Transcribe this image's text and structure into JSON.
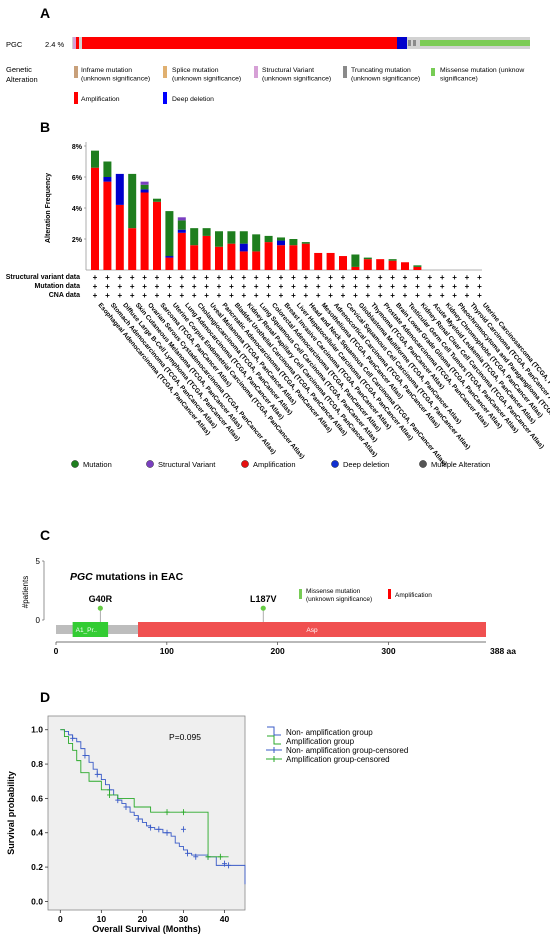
{
  "panels": {
    "a": "A",
    "b": "B",
    "c": "C",
    "d": "D"
  },
  "oncoprint": {
    "gene": "PGC",
    "percent": "2.4 %",
    "legend_title": [
      "Genetic",
      "Alteration"
    ],
    "legend": [
      {
        "label": [
          "Inframe mutation",
          "(unknown significance)"
        ],
        "color": "#c8a07a"
      },
      {
        "label": [
          "Splice mutation",
          "(unknown significance)"
        ],
        "color": "#e0b070"
      },
      {
        "label": [
          "Structural Variant",
          "(unknown significance)"
        ],
        "color": "#d6a0d6"
      },
      {
        "label": [
          "Truncating mutation",
          "(unknown significance)"
        ],
        "color": "#8a8a8a"
      },
      {
        "label": [
          "Missense mutation (unknow",
          "significance)"
        ],
        "color": "#77cc55"
      },
      {
        "label": [
          "Amplification"
        ],
        "color": "#ff0000"
      },
      {
        "label": [
          "Deep deletion"
        ],
        "color": "#0000ff"
      }
    ],
    "colors": {
      "amp": "#ff0000",
      "del": "#0000cc",
      "mis": "#7ccc55",
      "track": "#d2d2d2"
    }
  },
  "chart_data": [
    {
      "type": "bar",
      "stacked": true,
      "ylabel": "Alteration Frequency",
      "ylim": [
        0,
        8
      ],
      "yticks": [
        "8%",
        "6%",
        "4%",
        "2%"
      ],
      "categories": [
        "Esophageal Adenocarcinoma (TCGA, PanCancer Atlas)",
        "Stomach Adenocarcinoma (TCGA, PanCancer Atlas)",
        "Diffuse Large B-Cell Lymphoma (TCGA, PanCancer Atlas)",
        "Skin Cutaneous Melanoma (TCGA, PanCancer Atlas)",
        "Ovarian Serous Cystadenocarcinoma (TCGA, PanCancer Atlas)",
        "Sarcoma (TCGA, PanCancer Atlas)",
        "Uterine Corpus Endometrial Carcinoma (TCGA, PanCancer Atlas)",
        "Lung Adenocarcinoma (TCGA, PanCancer Atlas)",
        "Cholangiocarcinoma (TCGA, PanCancer Atlas)",
        "Uveal Melanoma (TCGA, PanCancer Atlas)",
        "Pancreatic Adenocarcinoma (TCGA, PanCancer Atlas)",
        "Bladder Urothelial Carcinoma (TCGA, PanCancer Atlas)",
        "Kidney Renal Papillary Cell Carcinoma (TCGA, PanCancer Atlas)",
        "Lung Squamous Cell Carcinoma (TCGA, PanCancer Atlas)",
        "Colorectal Adenocarcinoma (TCGA, PanCancer Atlas)",
        "Breast Invasive Carcinoma (TCGA, PanCancer Atlas)",
        "Liver Hepatocellular Carcinoma (TCGA, PanCancer Atlas)",
        "Head and Neck Squamous Cell Carcinoma (TCGA, PanCancer Atlas)",
        "Mesothelioma (TCGA, PanCancer Atlas)",
        "Adrenocortical Carcinoma (TCGA, PanCancer Atlas)",
        "Cervical Squamous Cell Carcinoma (TCGA, PanCancer Atlas)",
        "Glioblastoma Multiforme (TCGA, PanCancer Atlas)",
        "Thymoma (TCGA, PanCancer Atlas)",
        "Prostate Adenocarcinoma (TCGA, PanCancer Atlas)",
        "Brain Lower Grade Glioma (TCGA, PanCancer Atlas)",
        "Testicular Germ Cell Tumors (TCGA, PanCancer Atlas)",
        "Kidney Renal Clear Cell Carcinoma (TCGA, PanCancer Atlas)",
        "Acute Myeloid Leukemia (TCGA, PanCancer Atlas)",
        "Kidney Chromophobe (TCGA, PanCancer Atlas)",
        "Pheochromocytoma and Paraganglioma (TCGA, PanCancer Atlas)",
        "Thyroid Carcinoma (TCGA, PanCancer Atlas)",
        "Uterine Carcinosarcoma (TCGA, PanCancer Atlas)"
      ],
      "series": [
        {
          "name": "Amplification",
          "color": "#ff0000",
          "values": [
            6.6,
            5.7,
            4.2,
            2.7,
            5.0,
            4.4,
            0.8,
            2.4,
            1.6,
            2.2,
            1.5,
            1.7,
            1.2,
            1.2,
            1.8,
            1.6,
            1.6,
            1.7,
            1.1,
            1.1,
            0.9,
            0.2,
            0.7,
            0.7,
            0.6,
            0.5,
            0.2,
            0,
            0,
            0,
            0,
            0
          ]
        },
        {
          "name": "Deep deletion",
          "color": "#0000cc",
          "values": [
            0,
            0.3,
            2.0,
            0,
            0.2,
            0,
            0.1,
            0.2,
            0,
            0,
            0,
            0,
            0.5,
            0,
            0,
            0.3,
            0,
            0,
            0,
            0,
            0,
            0,
            0,
            0,
            0,
            0,
            0,
            0,
            0,
            0,
            0,
            0
          ]
        },
        {
          "name": "Mutation",
          "color": "#1e7e1e",
          "values": [
            1.1,
            1.0,
            0,
            3.5,
            0.3,
            0.2,
            2.9,
            0.6,
            1.1,
            0.5,
            1.0,
            0.8,
            0.8,
            1.1,
            0.4,
            0.2,
            0.4,
            0.1,
            0,
            0,
            0,
            0.8,
            0.1,
            0,
            0.1,
            0,
            0.1,
            0,
            0,
            0,
            0,
            0
          ]
        },
        {
          "name": "Structural Variant",
          "color": "#7a3fc0",
          "values": [
            0,
            0,
            0,
            0,
            0.2,
            0,
            0,
            0.2,
            0,
            0,
            0,
            0,
            0,
            0,
            0,
            0,
            0,
            0,
            0,
            0,
            0,
            0,
            0,
            0,
            0,
            0,
            0,
            0,
            0,
            0,
            0,
            0
          ]
        }
      ],
      "row_labels": [
        "Structural variant data",
        "Mutation data",
        "CNA data"
      ],
      "row_marker": "+",
      "legend": [
        {
          "label": "Mutation",
          "color": "#1e7e1e"
        },
        {
          "label": "Structural Variant",
          "color": "#7a3fc0"
        },
        {
          "label": "Amplification",
          "color": "#e51010"
        },
        {
          "label": "Deep deletion",
          "color": "#1030d0"
        },
        {
          "label": "Multiple Alteration",
          "color": "#555555"
        }
      ]
    },
    {
      "type": "lollipop",
      "title_gene": "PGC",
      "title_rest": " mutations in EAC",
      "ylabel": "#patients",
      "yticks": [
        "5",
        "0"
      ],
      "ylim": [
        0,
        5
      ],
      "xlim": [
        0,
        388
      ],
      "xticks": [
        "0",
        "100",
        "200",
        "300"
      ],
      "xend_label": "388 aa",
      "domains": [
        {
          "label": "A1_Pr..",
          "start": 15,
          "end": 47,
          "color": "#33cc33"
        },
        {
          "label": "Asp",
          "start": 74,
          "end": 388,
          "color": "#f05050"
        }
      ],
      "mutations": [
        {
          "label": "G40R",
          "position": 40,
          "count": 1
        },
        {
          "label": "L187V",
          "position": 187,
          "count": 1
        }
      ],
      "legend": [
        {
          "label": [
            "Missense mutation",
            "(unknown significance)"
          ],
          "color": "#77cc55"
        },
        {
          "label": [
            "Amplification"
          ],
          "color": "#ff0000"
        }
      ]
    },
    {
      "type": "line",
      "subtype": "kaplan-meier",
      "xlabel": "Overall Survival (Months)",
      "ylabel": "Survival probability",
      "xlim": [
        -3,
        45
      ],
      "ylim": [
        -0.05,
        1.08
      ],
      "xticks": [
        0,
        10,
        20,
        30,
        40
      ],
      "yticks": [
        "0.0",
        "0.2",
        "0.4",
        "0.6",
        "0.8",
        "1.0"
      ],
      "annotation": "P=0.095",
      "legend": [
        "Non- amplification group",
        "Amplification group",
        "Non- amplification group-censored",
        "Amplification group-censored"
      ],
      "series": [
        {
          "name": "Non- amplification group",
          "color": "#3a5bc7",
          "steps": [
            [
              0,
              1.0
            ],
            [
              1,
              0.99
            ],
            [
              2,
              0.97
            ],
            [
              3,
              0.95
            ],
            [
              4,
              0.93
            ],
            [
              5,
              0.89
            ],
            [
              6,
              0.85
            ],
            [
              7,
              0.81
            ],
            [
              8,
              0.77
            ],
            [
              9,
              0.74
            ],
            [
              10,
              0.71
            ],
            [
              11,
              0.68
            ],
            [
              12,
              0.65
            ],
            [
              13,
              0.62
            ],
            [
              14,
              0.59
            ],
            [
              15,
              0.57
            ],
            [
              16,
              0.55
            ],
            [
              17,
              0.52
            ],
            [
              18,
              0.5
            ],
            [
              19,
              0.48
            ],
            [
              20,
              0.46
            ],
            [
              21,
              0.44
            ],
            [
              22,
              0.43
            ],
            [
              23,
              0.42
            ],
            [
              25,
              0.4
            ],
            [
              27,
              0.38
            ],
            [
              28,
              0.34
            ],
            [
              29,
              0.32
            ],
            [
              30,
              0.3
            ],
            [
              31,
              0.28
            ],
            [
              32,
              0.27
            ],
            [
              36,
              0.26
            ],
            [
              38,
              0.21
            ],
            [
              45,
              0.1
            ],
            [
              60,
              0.1
            ]
          ],
          "censored": [
            [
              3,
              0.95
            ],
            [
              6,
              0.85
            ],
            [
              9,
              0.74
            ],
            [
              12,
              0.65
            ],
            [
              14,
              0.59
            ],
            [
              16,
              0.55
            ],
            [
              19,
              0.48
            ],
            [
              22,
              0.43
            ],
            [
              24,
              0.42
            ],
            [
              26,
              0.4
            ],
            [
              30,
              0.42
            ],
            [
              31,
              0.28
            ],
            [
              33,
              0.26
            ],
            [
              36,
              0.26
            ],
            [
              40,
              0.22
            ],
            [
              41,
              0.21
            ]
          ]
        },
        {
          "name": "Amplification group",
          "color": "#2aaa2a",
          "steps": [
            [
              0,
              1.0
            ],
            [
              1,
              0.96
            ],
            [
              2,
              0.92
            ],
            [
              3,
              0.88
            ],
            [
              4,
              0.82
            ],
            [
              5,
              0.75
            ],
            [
              7,
              0.7
            ],
            [
              10,
              0.65
            ],
            [
              12,
              0.62
            ],
            [
              14,
              0.6
            ],
            [
              18,
              0.55
            ],
            [
              22,
              0.52
            ],
            [
              36,
              0.26
            ],
            [
              41,
              0.26
            ]
          ],
          "censored": [
            [
              12,
              0.62
            ],
            [
              26,
              0.52
            ],
            [
              30,
              0.52
            ],
            [
              36,
              0.26
            ],
            [
              39,
              0.26
            ]
          ]
        }
      ]
    }
  ]
}
